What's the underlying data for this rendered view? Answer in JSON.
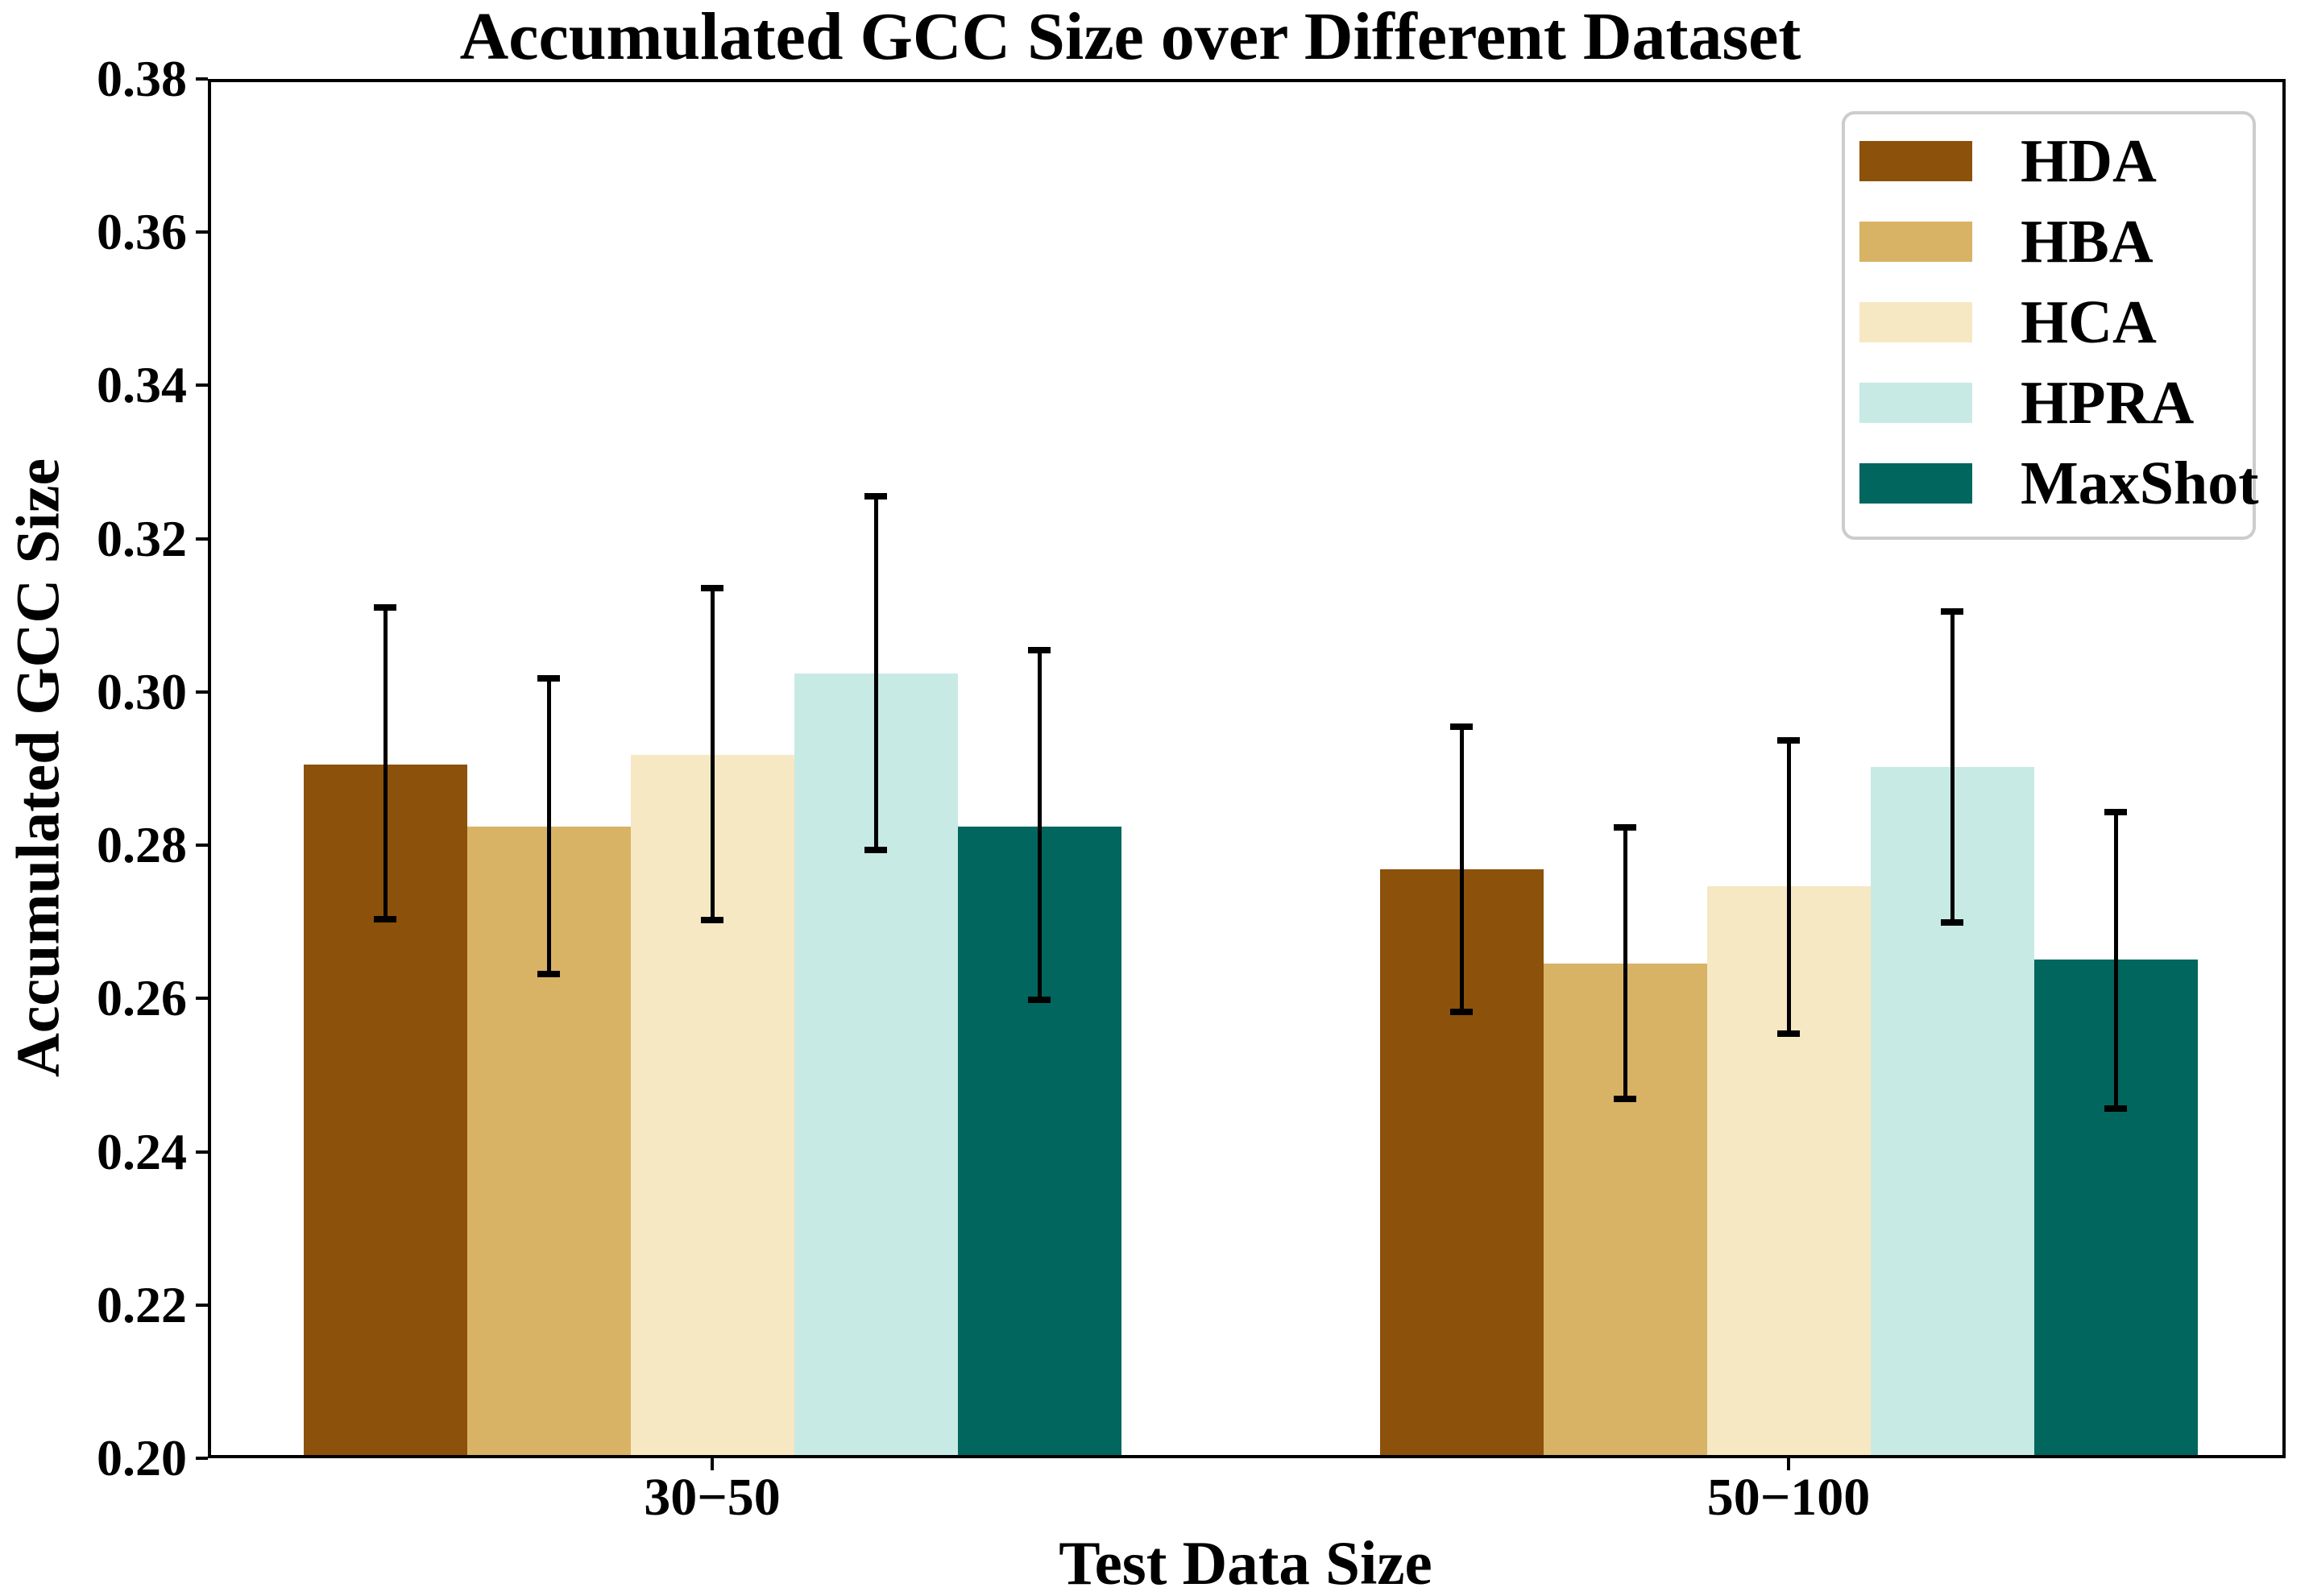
{
  "figure": {
    "background": "#ffffff",
    "text_color": "#000000",
    "axis_color": "#000000",
    "legend_border_color": "#cccccc"
  },
  "chart_data": {
    "type": "bar",
    "title": "Accumulated GCC Size over Different Dataset",
    "xlabel": "Test Data Size",
    "ylabel": "Accumulated GCC Size",
    "categories": [
      "30−50",
      "50−100"
    ],
    "ylim": [
      0.2,
      0.38
    ],
    "ytick_labels": [
      "0.20",
      "0.22",
      "0.24",
      "0.26",
      "0.28",
      "0.30",
      "0.32",
      "0.34",
      "0.36",
      "0.38"
    ],
    "grid": false,
    "legend_position": "upper right",
    "error_bars": true,
    "error_bar_color": "#000000",
    "series": [
      {
        "name": "HDA",
        "color": "#8c510a",
        "values": [
          0.2905,
          0.2769
        ],
        "error_low": [
          0.2703,
          0.2583
        ],
        "error_high": [
          0.311,
          0.2955
        ]
      },
      {
        "name": "HBA",
        "color": "#d8b365",
        "values": [
          0.2824,
          0.2646
        ],
        "error_low": [
          0.2632,
          0.2469
        ],
        "error_high": [
          0.3018,
          0.2823
        ]
      },
      {
        "name": "HCA",
        "color": "#f6e8c3",
        "values": [
          0.2918,
          0.2746
        ],
        "error_low": [
          0.2702,
          0.2554
        ],
        "error_high": [
          0.3136,
          0.2937
        ]
      },
      {
        "name": "HPRA",
        "color": "#c7eae5",
        "values": [
          0.3024,
          0.2902
        ],
        "error_low": [
          0.2794,
          0.2699
        ],
        "error_high": [
          0.3255,
          0.3105
        ]
      },
      {
        "name": "MaxShot",
        "color": "#01665e",
        "values": [
          0.2824,
          0.2651
        ],
        "error_low": [
          0.2598,
          0.2456
        ],
        "error_high": [
          0.3055,
          0.2843
        ]
      }
    ]
  }
}
